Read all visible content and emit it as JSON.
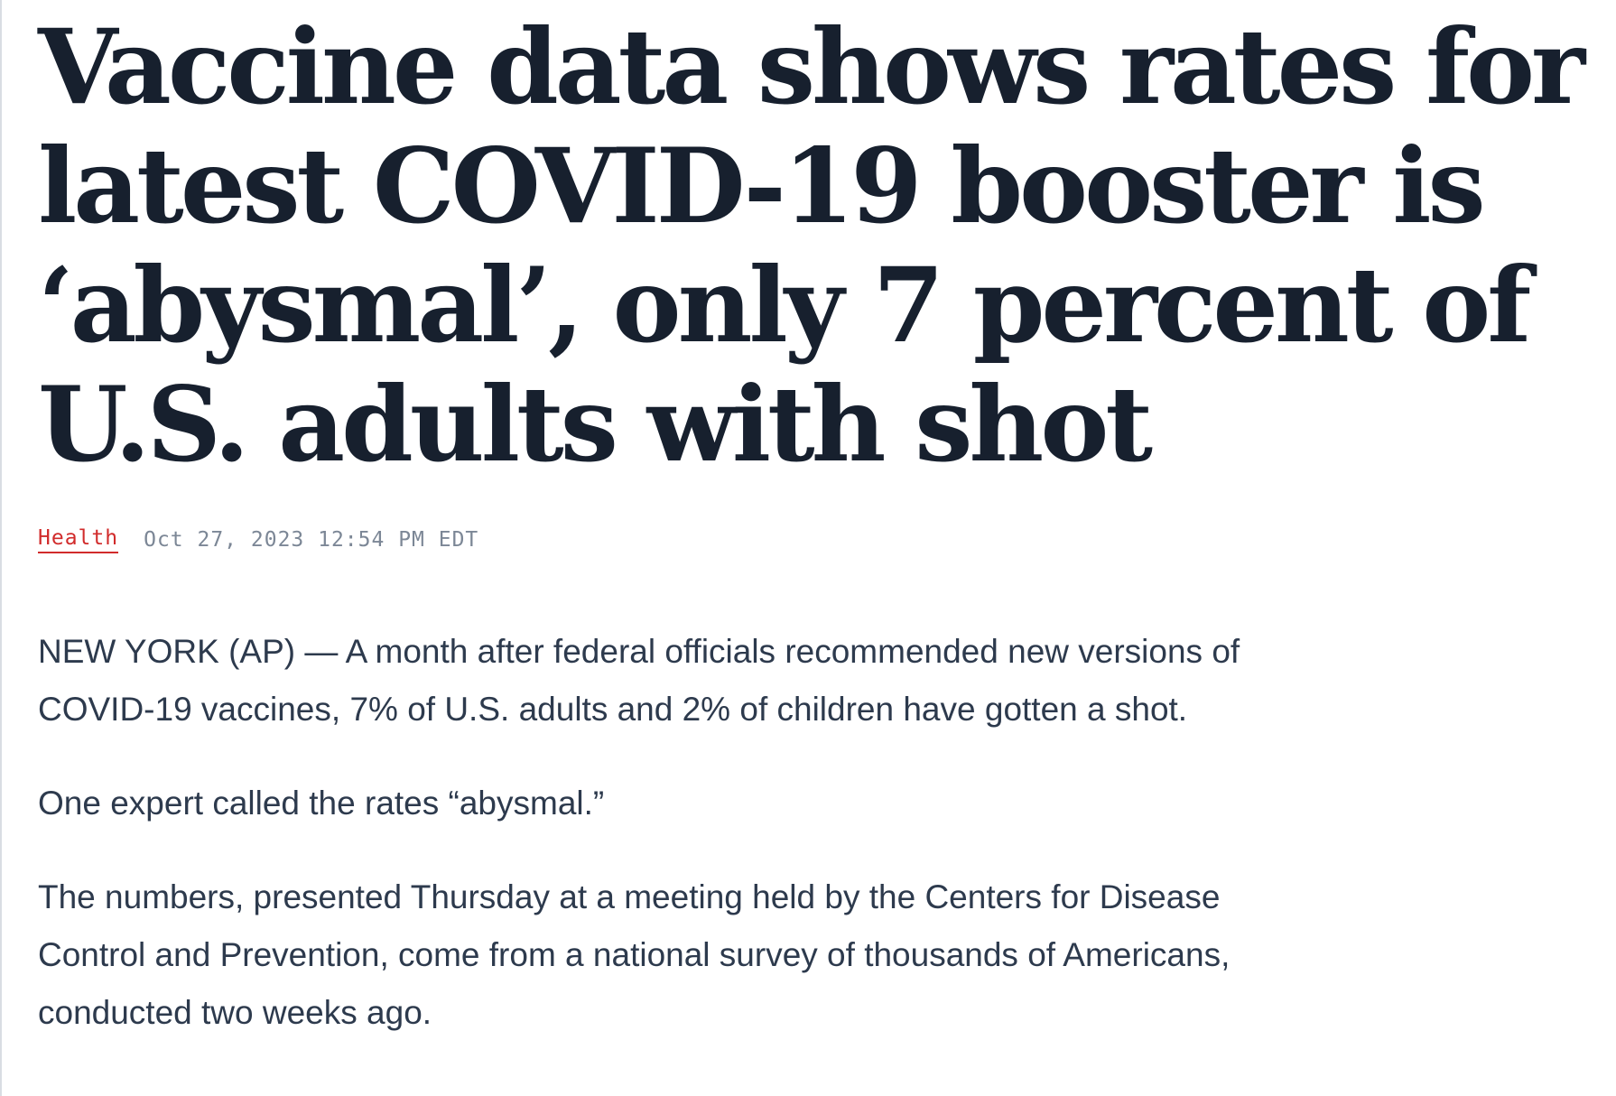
{
  "article": {
    "headline": "Vaccine data shows rates for latest COVID-19 booster is ‘abysmal’, only 7 percent of U.S. adults with shot",
    "category": "Health",
    "timestamp": "Oct 27, 2023 12:54 PM EDT",
    "paragraphs": [
      "NEW YORK (AP) — A month after federal officials recommended new versions of COVID-19 vaccines, 7% of U.S. adults and 2% of children have gotten a shot.",
      "One expert called the rates “abysmal.”",
      "The numbers, presented Thursday at a meeting held by the Centers for Disease Control and Prevention, come from a national survey of thousands of Americans, conducted two weeks ago."
    ]
  },
  "colors": {
    "headline": "#17202e",
    "category": "#d12b2b",
    "timestamp": "#7c8796",
    "body": "#2d3a4d"
  }
}
